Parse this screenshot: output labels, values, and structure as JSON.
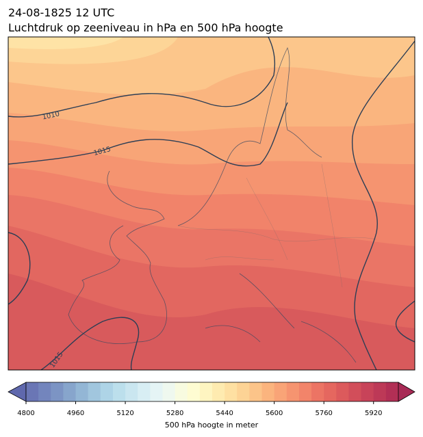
{
  "header": {
    "title_line1": "24-08-1825 12 UTC",
    "title_line2": "Luchtdruk op zeeniveau in hPa en 500 hPa hoogte"
  },
  "map": {
    "contour_labels": [
      "1010",
      "1015",
      "1015"
    ]
  },
  "colorbar": {
    "lim": [
      4800,
      6000
    ],
    "ticks": [
      4800,
      4960,
      5120,
      5280,
      5440,
      5600,
      5760,
      5920
    ],
    "label": "500 hPa hoogte in meter",
    "colors": [
      "#6a76b5",
      "#7385bd",
      "#7c94c4",
      "#87a5cc",
      "#93b6d5",
      "#a1c6de",
      "#aed4e7",
      "#bcdfec",
      "#cae6f0",
      "#d8eef4",
      "#e5f4f5",
      "#eff8ef",
      "#f8fbe0",
      "#fefcd2",
      "#fef5c1",
      "#feebb0",
      "#fee0a2",
      "#fdd395",
      "#fcc489",
      "#fbb47e",
      "#f9a477",
      "#f69470",
      "#f2846a",
      "#ec7464",
      "#e5675f",
      "#dc5a5c",
      "#d24e5a",
      "#c84359",
      "#bd3957",
      "#b22f55"
    ]
  }
}
